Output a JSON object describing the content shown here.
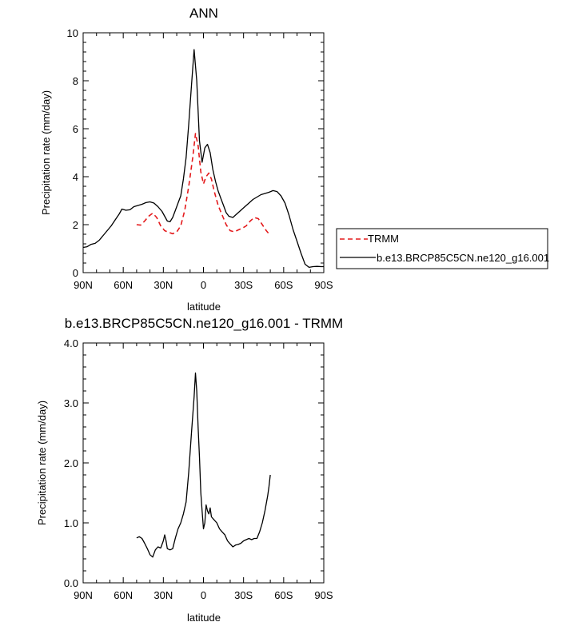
{
  "chart_data": [
    {
      "type": "line",
      "title": "ANN",
      "xlabel": "latitude",
      "ylabel": "Precipitation rate (mm/day)",
      "xlim": [
        90,
        -90
      ],
      "ylim": [
        0,
        10
      ],
      "xticks": [
        90,
        60,
        30,
        0,
        -30,
        -60,
        -90
      ],
      "xtick_labels": [
        "90N",
        "60N",
        "30N",
        "0",
        "30S",
        "60S",
        "90S"
      ],
      "yticks": [
        0,
        2,
        4,
        6,
        8,
        10
      ],
      "ytick_labels": [
        "0",
        "2",
        "4",
        "6",
        "8",
        "10"
      ],
      "grid": false,
      "legend": "outside-right",
      "series": [
        {
          "name": "TRMM",
          "color": "#e41a1c",
          "dash": "dashed",
          "points": [
            [
              50,
              2.0
            ],
            [
              47,
              1.98
            ],
            [
              44,
              2.15
            ],
            [
              41,
              2.35
            ],
            [
              38,
              2.48
            ],
            [
              35,
              2.3
            ],
            [
              32,
              1.95
            ],
            [
              29,
              1.75
            ],
            [
              26,
              1.68
            ],
            [
              23,
              1.62
            ],
            [
              20,
              1.7
            ],
            [
              17,
              1.95
            ],
            [
              14,
              2.6
            ],
            [
              11,
              3.6
            ],
            [
              8,
              4.8
            ],
            [
              6,
              5.8
            ],
            [
              4,
              5.3
            ],
            [
              2,
              4.2
            ],
            [
              0,
              3.7
            ],
            [
              -2,
              4.0
            ],
            [
              -4,
              4.15
            ],
            [
              -6,
              3.9
            ],
            [
              -8,
              3.4
            ],
            [
              -11,
              2.8
            ],
            [
              -14,
              2.4
            ],
            [
              -17,
              2.0
            ],
            [
              -20,
              1.75
            ],
            [
              -23,
              1.7
            ],
            [
              -26,
              1.78
            ],
            [
              -29,
              1.85
            ],
            [
              -32,
              1.95
            ],
            [
              -35,
              2.15
            ],
            [
              -38,
              2.3
            ],
            [
              -41,
              2.25
            ],
            [
              -44,
              2.0
            ],
            [
              -47,
              1.75
            ],
            [
              -50,
              1.55
            ]
          ]
        },
        {
          "name": "b.e13.BRCP85C5CN.ne120_g16.001",
          "color": "#000000",
          "dash": "solid",
          "points": [
            [
              90,
              1.05
            ],
            [
              87,
              1.08
            ],
            [
              84,
              1.18
            ],
            [
              81,
              1.22
            ],
            [
              78,
              1.35
            ],
            [
              75,
              1.55
            ],
            [
              72,
              1.75
            ],
            [
              69,
              1.95
            ],
            [
              66,
              2.2
            ],
            [
              63,
              2.45
            ],
            [
              61,
              2.65
            ],
            [
              58,
              2.6
            ],
            [
              55,
              2.62
            ],
            [
              52,
              2.75
            ],
            [
              49,
              2.8
            ],
            [
              46,
              2.85
            ],
            [
              43,
              2.92
            ],
            [
              40,
              2.95
            ],
            [
              37,
              2.9
            ],
            [
              34,
              2.75
            ],
            [
              31,
              2.55
            ],
            [
              29,
              2.35
            ],
            [
              27,
              2.15
            ],
            [
              25,
              2.12
            ],
            [
              23,
              2.3
            ],
            [
              21,
              2.6
            ],
            [
              19,
              2.9
            ],
            [
              17,
              3.2
            ],
            [
              15,
              3.9
            ],
            [
              13,
              4.8
            ],
            [
              11,
              6.2
            ],
            [
              9,
              7.8
            ],
            [
              7,
              9.3
            ],
            [
              5,
              8.0
            ],
            [
              3,
              5.5
            ],
            [
              1,
              4.6
            ],
            [
              -1,
              5.2
            ],
            [
              -3,
              5.35
            ],
            [
              -5,
              5.0
            ],
            [
              -7,
              4.3
            ],
            [
              -9,
              3.8
            ],
            [
              -11,
              3.4
            ],
            [
              -13,
              3.1
            ],
            [
              -15,
              2.8
            ],
            [
              -17,
              2.5
            ],
            [
              -19,
              2.35
            ],
            [
              -22,
              2.3
            ],
            [
              -25,
              2.45
            ],
            [
              -28,
              2.6
            ],
            [
              -31,
              2.75
            ],
            [
              -34,
              2.9
            ],
            [
              -37,
              3.05
            ],
            [
              -40,
              3.15
            ],
            [
              -43,
              3.25
            ],
            [
              -46,
              3.3
            ],
            [
              -49,
              3.35
            ],
            [
              -52,
              3.42
            ],
            [
              -55,
              3.38
            ],
            [
              -58,
              3.2
            ],
            [
              -61,
              2.9
            ],
            [
              -64,
              2.4
            ],
            [
              -67,
              1.8
            ],
            [
              -70,
              1.3
            ],
            [
              -73,
              0.8
            ],
            [
              -76,
              0.35
            ],
            [
              -79,
              0.22
            ],
            [
              -82,
              0.25
            ],
            [
              -85,
              0.26
            ],
            [
              -88,
              0.25
            ],
            [
              -90,
              0.25
            ]
          ]
        }
      ]
    },
    {
      "type": "line",
      "title": "b.e13.BRCP85C5CN.ne120_g16.001 - TRMM",
      "xlabel": "latitude",
      "ylabel": "Precipitation rate (mm/day)",
      "xlim": [
        90,
        -90
      ],
      "ylim": [
        0,
        4
      ],
      "xticks": [
        90,
        60,
        30,
        0,
        -30,
        -60,
        -90
      ],
      "xtick_labels": [
        "90N",
        "60N",
        "30N",
        "0",
        "30S",
        "60S",
        "90S"
      ],
      "yticks": [
        0,
        1,
        2,
        3,
        4
      ],
      "ytick_labels": [
        "0.0",
        "1.0",
        "2.0",
        "3.0",
        "4.0"
      ],
      "grid": false,
      "series": [
        {
          "color": "#000000",
          "dash": "solid",
          "points": [
            [
              50,
              0.75
            ],
            [
              48,
              0.77
            ],
            [
              46,
              0.74
            ],
            [
              44,
              0.66
            ],
            [
              42,
              0.57
            ],
            [
              40,
              0.47
            ],
            [
              38,
              0.43
            ],
            [
              36,
              0.55
            ],
            [
              34,
              0.6
            ],
            [
              32,
              0.58
            ],
            [
              30,
              0.7
            ],
            [
              29,
              0.8
            ],
            [
              28,
              0.7
            ],
            [
              27,
              0.57
            ],
            [
              25,
              0.55
            ],
            [
              23,
              0.57
            ],
            [
              21,
              0.75
            ],
            [
              19,
              0.9
            ],
            [
              17,
              1.0
            ],
            [
              15,
              1.15
            ],
            [
              13,
              1.35
            ],
            [
              11,
              1.85
            ],
            [
              9,
              2.5
            ],
            [
              7,
              3.1
            ],
            [
              6,
              3.5
            ],
            [
              5,
              3.2
            ],
            [
              4,
              2.6
            ],
            [
              3,
              2.1
            ],
            [
              2,
              1.5
            ],
            [
              1,
              1.2
            ],
            [
              0,
              0.9
            ],
            [
              -1,
              1.0
            ],
            [
              -2,
              1.3
            ],
            [
              -3,
              1.2
            ],
            [
              -4,
              1.15
            ],
            [
              -5,
              1.25
            ],
            [
              -6,
              1.1
            ],
            [
              -8,
              1.05
            ],
            [
              -10,
              1.0
            ],
            [
              -12,
              0.9
            ],
            [
              -14,
              0.85
            ],
            [
              -16,
              0.8
            ],
            [
              -18,
              0.7
            ],
            [
              -20,
              0.65
            ],
            [
              -22,
              0.6
            ],
            [
              -24,
              0.63
            ],
            [
              -26,
              0.64
            ],
            [
              -28,
              0.66
            ],
            [
              -30,
              0.7
            ],
            [
              -32,
              0.72
            ],
            [
              -34,
              0.74
            ],
            [
              -36,
              0.72
            ],
            [
              -38,
              0.74
            ],
            [
              -40,
              0.74
            ],
            [
              -42,
              0.85
            ],
            [
              -44,
              1.0
            ],
            [
              -46,
              1.2
            ],
            [
              -48,
              1.45
            ],
            [
              -49,
              1.6
            ],
            [
              -50,
              1.8
            ]
          ]
        }
      ]
    }
  ]
}
